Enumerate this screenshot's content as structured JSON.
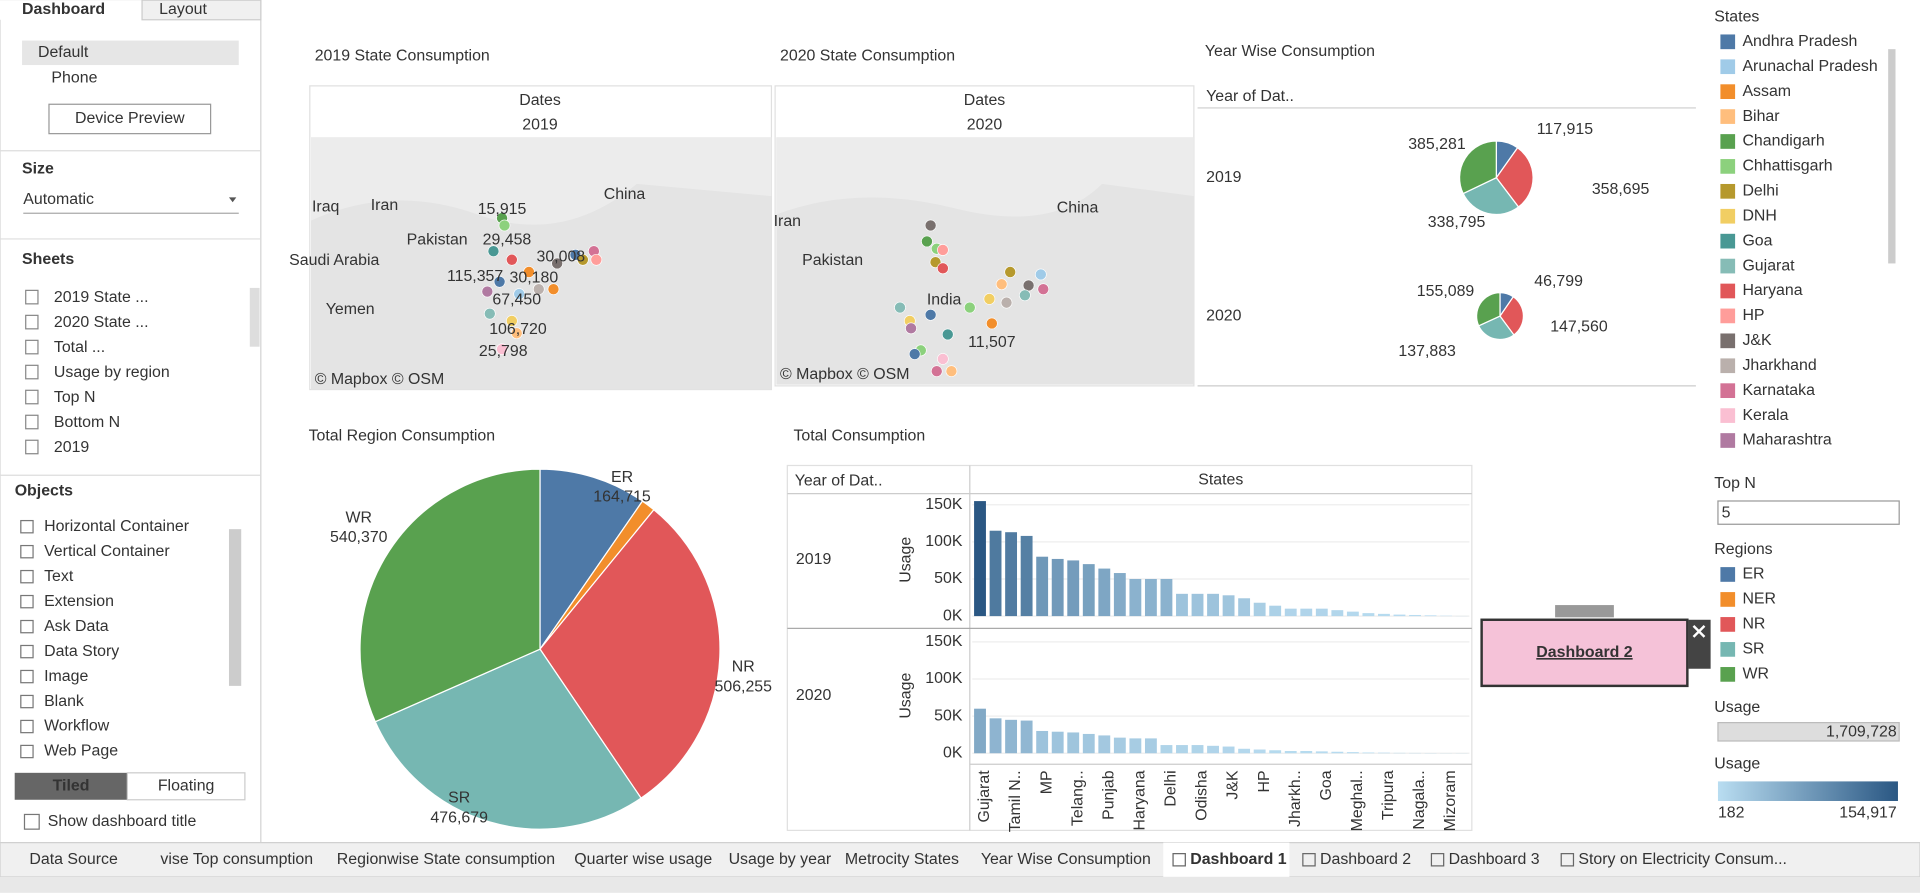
{
  "left_panel": {
    "tabs": [
      "Dashboard",
      "Layout"
    ],
    "devices": [
      "Default",
      "Phone"
    ],
    "device_preview": "Device Preview",
    "size_title": "Size",
    "size_value": "Automatic",
    "sheets_title": "Sheets",
    "sheets": [
      "2019 State ...",
      "2020 State ...",
      "Total ...",
      "Usage by region",
      "Top N",
      "Bottom N",
      "2019"
    ],
    "objects_title": "Objects",
    "objects": [
      "Horizontal Container",
      "Vertical Container",
      "Text",
      "Extension",
      "Ask Data",
      "Data Story",
      "Image",
      "Blank",
      "Workflow",
      "Web Page"
    ],
    "layout_modes": [
      "Tiled",
      "Floating"
    ],
    "show_title": "Show dashboard title"
  },
  "map_2019": {
    "title": "2019 State Consumption",
    "header": "Dates",
    "year": "2019",
    "places": [
      "China",
      "Iran",
      "Iraq",
      "Pakistan",
      "Saudi Arabia",
      "Yemen"
    ],
    "labels": [
      "15,915",
      "29,458",
      "30,008",
      "115,357",
      "30,180",
      "67,450",
      "106,720",
      "25,798"
    ],
    "credit": "© Mapbox © OSM"
  },
  "map_2020": {
    "title": "2020 State Consumption",
    "header": "Dates",
    "year": "2020",
    "places": [
      "Iran",
      "China",
      "Pakistan",
      "India"
    ],
    "labels": [
      "11,507"
    ],
    "credit": "© Mapbox © OSM"
  },
  "year_wise": {
    "title": "Year Wise Consumption",
    "header": "Year of Dat..",
    "pies": [
      {
        "name": "2019",
        "categories": [
          "ER",
          "NR",
          "SR",
          "WR"
        ],
        "values": [
          117915,
          358695,
          338795,
          385281
        ],
        "value_labels": [
          "117,915",
          "358,695",
          "338,795",
          "385,281"
        ]
      },
      {
        "name": "2020",
        "categories": [
          "ER",
          "NR",
          "SR",
          "WR"
        ],
        "values": [
          46799,
          147560,
          137883,
          155089
        ],
        "value_labels": [
          "46,799",
          "147,560",
          "137,883",
          "155,089"
        ]
      }
    ]
  },
  "region_pie": {
    "type": "pie",
    "title": "Total Region Consumption",
    "categories": [
      "ER",
      "NER",
      "NR",
      "SR",
      "WR"
    ],
    "values": [
      164715,
      21709,
      506255,
      476679,
      540370
    ],
    "value_labels": [
      "164,715",
      null,
      "506,255",
      "476,679",
      "540,370"
    ],
    "colors": [
      "#4e79a7",
      "#f28e2b",
      "#e15759",
      "#76b7b2",
      "#59a14f"
    ]
  },
  "total_consumption": {
    "type": "bar",
    "title": "Total Consumption",
    "row_header": "Year of Dat..",
    "col_header": "States",
    "y_label": "Usage",
    "categories": [
      "Gujarat",
      null,
      "Tamil N..",
      null,
      "MP",
      null,
      "Telang..",
      null,
      "Punjab",
      null,
      "Haryana",
      null,
      "Delhi",
      null,
      "Odisha",
      null,
      "J&K",
      null,
      "HP",
      null,
      "Jharkh..",
      null,
      "Goa",
      null,
      "Meghal..",
      null,
      "Tripura",
      null,
      "Nagala..",
      null,
      "Mizoram",
      null
    ],
    "series": [
      {
        "name": "2019",
        "values": [
          154917,
          115000,
          113000,
          108000,
          80000,
          77000,
          75000,
          70000,
          64000,
          58000,
          50000,
          50000,
          50000,
          30000,
          30000,
          30000,
          28000,
          24000,
          18000,
          14000,
          10000,
          10000,
          10000,
          8000,
          6000,
          4000,
          3000,
          2000,
          1500,
          1000,
          500,
          182
        ]
      },
      {
        "name": "2020",
        "values": [
          60000,
          47000,
          45000,
          44000,
          30000,
          29000,
          28000,
          26000,
          24000,
          21000,
          20000,
          20000,
          11000,
          11000,
          11000,
          10000,
          9000,
          6000,
          5000,
          4000,
          3000,
          3000,
          2500,
          2000,
          1500,
          1000,
          800,
          500,
          400,
          300,
          200,
          182
        ]
      }
    ],
    "ylim": [
      0,
      160000
    ],
    "yticks": [
      {
        "value": 0,
        "label": "0K"
      },
      {
        "value": 50000,
        "label": "50K"
      },
      {
        "value": 100000,
        "label": "100K"
      },
      {
        "value": 150000,
        "label": "150K"
      }
    ]
  },
  "legends": {
    "states_title": "States",
    "states": [
      {
        "name": "Andhra Pradesh",
        "color": "#4e79a7"
      },
      {
        "name": "Arunachal Pradesh",
        "color": "#a0cbe8"
      },
      {
        "name": "Assam",
        "color": "#f28e2b"
      },
      {
        "name": "Bihar",
        "color": "#ffbe7d"
      },
      {
        "name": "Chandigarh",
        "color": "#59a14f"
      },
      {
        "name": "Chhattisgarh",
        "color": "#8cd17d"
      },
      {
        "name": "Delhi",
        "color": "#b6992d"
      },
      {
        "name": "DNH",
        "color": "#f1ce63"
      },
      {
        "name": "Goa",
        "color": "#499894"
      },
      {
        "name": "Gujarat",
        "color": "#86bcb6"
      },
      {
        "name": "Haryana",
        "color": "#e15759"
      },
      {
        "name": "HP",
        "color": "#ff9d9a"
      },
      {
        "name": "J&K",
        "color": "#79706e"
      },
      {
        "name": "Jharkhand",
        "color": "#bab0ac"
      },
      {
        "name": "Karnataka",
        "color": "#d37295"
      },
      {
        "name": "Kerala",
        "color": "#fabfd2"
      },
      {
        "name": "Maharashtra",
        "color": "#b07aa1"
      }
    ],
    "top_n_title": "Top N",
    "top_n_value": "5",
    "regions_title": "Regions",
    "regions": [
      {
        "name": "ER",
        "color": "#4e79a7"
      },
      {
        "name": "NER",
        "color": "#f28e2b"
      },
      {
        "name": "NR",
        "color": "#e15759"
      },
      {
        "name": "SR",
        "color": "#76b7b2"
      },
      {
        "name": "WR",
        "color": "#59a14f"
      }
    ],
    "usage_filter_title": "Usage",
    "usage_filter_value": "1,709,728",
    "usage_color_title": "Usage",
    "usage_color_range": [
      {
        "value": 182,
        "label": "182"
      },
      {
        "value": 154917,
        "label": "154,917"
      }
    ],
    "usage_colors": [
      "#b9ddf1",
      "#2a5783"
    ]
  },
  "floating_button": "Dashboard 2",
  "bottom_tabs": [
    "Data Source",
    "vise Top consumption",
    "Regionwise State consumption",
    "Quarter wise usage",
    "Usage by year",
    "Metrocity States",
    "Year Wise Consumption",
    "Dashboard 1",
    "Dashboard 2",
    "Dashboard 3",
    "Story on Electricity Consum..."
  ]
}
